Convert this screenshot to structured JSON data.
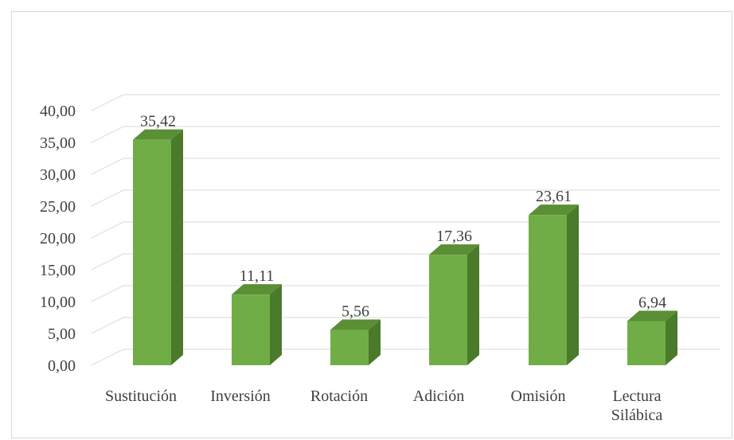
{
  "chart_data": {
    "type": "bar",
    "style": "3d-column",
    "categories": [
      "Sustitución",
      "Inversión",
      "Rotación",
      "Adición",
      "Omisión",
      "Lectura Silábica"
    ],
    "category_lines": [
      [
        "Sustitución"
      ],
      [
        "Inversión"
      ],
      [
        "Rotación"
      ],
      [
        "Adición"
      ],
      [
        "Omisión"
      ],
      [
        "Lectura",
        "Silábica"
      ]
    ],
    "values": [
      35.42,
      11.11,
      5.56,
      17.36,
      23.61,
      6.94
    ],
    "value_labels": [
      "35,42",
      "11,11",
      "5,56",
      "17,36",
      "23,61",
      "6,94"
    ],
    "y_ticks": [
      "0,00",
      "5,00",
      "10,00",
      "15,00",
      "20,00",
      "25,00",
      "30,00",
      "35,00",
      "40,00"
    ],
    "ylim": [
      0,
      40
    ],
    "grid": true,
    "legend": "none",
    "colors": {
      "front": "#70ad47",
      "side": "#4a7a2a",
      "top": "#5a8f35",
      "grid": "#d9d9d9",
      "text": "#404040"
    }
  }
}
